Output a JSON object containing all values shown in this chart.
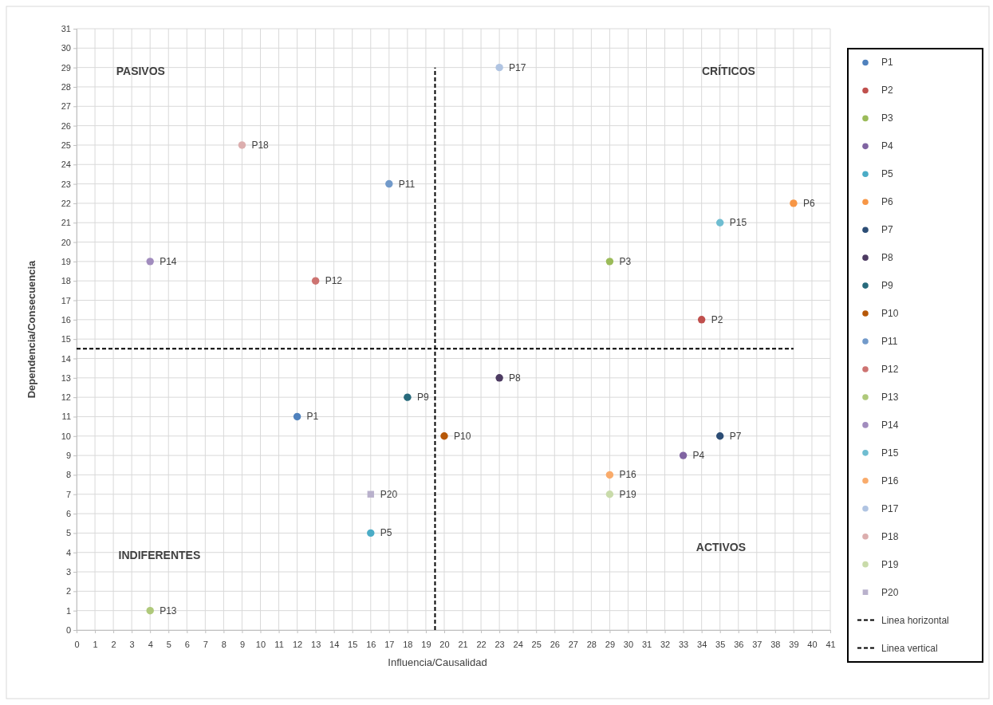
{
  "chart_data": {
    "type": "scatter",
    "xlabel": "Influencia/Causalidad",
    "ylabel": "Dependencia/Consecuencia",
    "xlim": [
      0,
      41
    ],
    "xticks": [
      0,
      1,
      2,
      3,
      4,
      5,
      6,
      7,
      8,
      9,
      10,
      11,
      12,
      13,
      14,
      15,
      16,
      17,
      18,
      19,
      20,
      21,
      22,
      23,
      24,
      25,
      26,
      27,
      28,
      29,
      30,
      31,
      32,
      33,
      34,
      35,
      36,
      37,
      38,
      39,
      40,
      41
    ],
    "ylim": [
      0,
      31
    ],
    "yticks": [
      0,
      1,
      2,
      3,
      4,
      5,
      6,
      7,
      8,
      9,
      10,
      11,
      12,
      13,
      14,
      15,
      16,
      17,
      18,
      19,
      20,
      21,
      22,
      23,
      24,
      25,
      26,
      27,
      28,
      29,
      30,
      31
    ],
    "grid": true,
    "legend": "right",
    "marker": "circle",
    "series": [
      {
        "name": "P1",
        "color": "#4f81bd",
        "x": [
          12
        ],
        "values": [
          11
        ]
      },
      {
        "name": "P2",
        "color": "#c0504d",
        "x": [
          34
        ],
        "values": [
          16
        ]
      },
      {
        "name": "P3",
        "color": "#9bbb59",
        "x": [
          29
        ],
        "values": [
          19
        ]
      },
      {
        "name": "P4",
        "color": "#8064a2",
        "x": [
          33
        ],
        "values": [
          9
        ]
      },
      {
        "name": "P5",
        "color": "#4bacc6",
        "x": [
          16
        ],
        "values": [
          5
        ]
      },
      {
        "name": "P6",
        "color": "#f79646",
        "x": [
          39
        ],
        "values": [
          22
        ]
      },
      {
        "name": "P7",
        "color": "#2c4d75",
        "x": [
          35
        ],
        "values": [
          10
        ]
      },
      {
        "name": "P8",
        "color": "#4d3b62",
        "x": [
          23
        ],
        "values": [
          13
        ]
      },
      {
        "name": "P9",
        "color": "#276a7c",
        "x": [
          18
        ],
        "values": [
          12
        ]
      },
      {
        "name": "P10",
        "color": "#b65708",
        "x": [
          20
        ],
        "values": [
          10
        ]
      },
      {
        "name": "P11",
        "color": "#729aca",
        "x": [
          17
        ],
        "values": [
          23
        ]
      },
      {
        "name": "P12",
        "color": "#cd7371",
        "x": [
          13
        ],
        "values": [
          18
        ]
      },
      {
        "name": "P13",
        "color": "#afc97a",
        "x": [
          4
        ],
        "values": [
          1
        ]
      },
      {
        "name": "P14",
        "color": "#a18cbe",
        "x": [
          4
        ],
        "values": [
          19
        ]
      },
      {
        "name": "P15",
        "color": "#6fbdd1",
        "x": [
          35
        ],
        "values": [
          21
        ]
      },
      {
        "name": "P16",
        "color": "#f9ab6b",
        "x": [
          29
        ],
        "values": [
          8
        ]
      },
      {
        "name": "P17",
        "color": "#b0c4e2",
        "x": [
          23
        ],
        "values": [
          29
        ]
      },
      {
        "name": "P18",
        "color": "#dcaeae",
        "x": [
          9
        ],
        "values": [
          25
        ]
      },
      {
        "name": "P19",
        "color": "#c9dbaa",
        "x": [
          29
        ],
        "values": [
          7
        ]
      },
      {
        "name": "P20",
        "color": "#b9b1cc",
        "x": [
          16
        ],
        "values": [
          7
        ],
        "marker": "square"
      },
      {
        "name": "Linea horizontal",
        "type": "line",
        "color": "#000000",
        "x": [
          0,
          39
        ],
        "values": [
          14.5,
          14.5
        ],
        "line_style": "dashed",
        "marker": "none"
      },
      {
        "name": "Linea vertical",
        "type": "line",
        "color": "#000000",
        "x": [
          19.5,
          19.5
        ],
        "values": [
          0,
          29
        ],
        "line_style": "dashed",
        "marker": "none"
      }
    ],
    "annotations": [
      "PASIVOS",
      "CRÍTICOS",
      "INDIFERENTES",
      "ACTIVOS"
    ]
  }
}
